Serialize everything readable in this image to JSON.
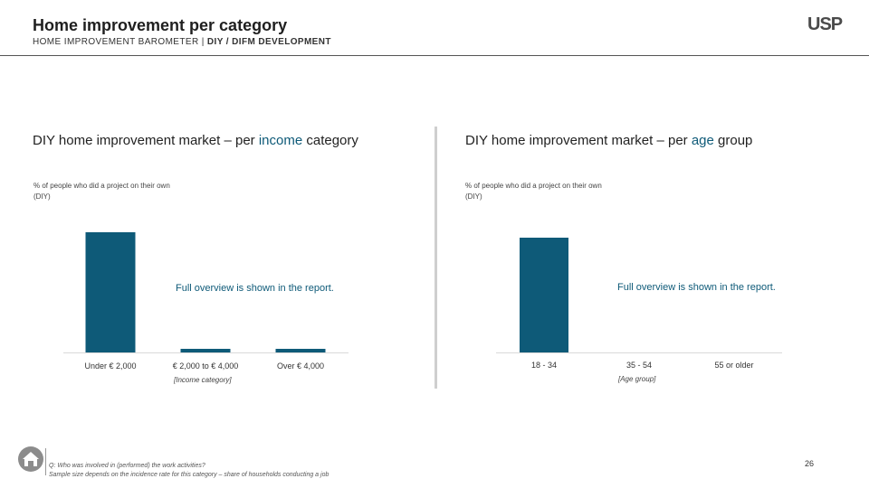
{
  "header": {
    "title": "Home improvement per category",
    "subtitle_prefix": "HOME IMPROVEMENT BAROMETER | ",
    "subtitle_bold": "DIY / DIFM DEVELOPMENT",
    "logo_main": "USP",
    "page_number": "26"
  },
  "panels": [
    {
      "title_before": "DIY home improvement market – per ",
      "title_highlight": "income",
      "title_after": " category",
      "note": "% of people who did a project on their own (DIY)",
      "overlay": "Full overview is shown in the report.",
      "axis_title": "[Income category]"
    },
    {
      "title_before": "DIY home improvement market – per ",
      "title_highlight": "age",
      "title_after": " group",
      "note": "% of people who did a project on their own (DIY)",
      "overlay": "Full overview is shown in the report.",
      "axis_title": "[Age group]"
    }
  ],
  "footer": {
    "line1": "Q: Who was involved in (performed) the work activities?",
    "line2": "Sample size depends on the incidence rate for this category – share of households conducting a job"
  },
  "colors": {
    "bar": "#0e5a78",
    "accent": "#c0392b"
  },
  "chart_data": [
    {
      "type": "bar",
      "title": "DIY home improvement market – per income category",
      "ylabel": "% of people who did a project on their own (DIY)",
      "xlabel": "[Income category]",
      "categories": [
        "Under € 2,000",
        "€ 2,000 to € 4,000",
        "Over € 4,000"
      ],
      "values": [
        100,
        3,
        3
      ],
      "ylim": [
        0,
        100
      ]
    },
    {
      "type": "bar",
      "title": "DIY home improvement market – per age group",
      "ylabel": "% of people who did a project on their own (DIY)",
      "xlabel": "[Age group]",
      "categories": [
        "18 - 34",
        "35 - 54",
        "55 or older"
      ],
      "values": [
        100,
        0,
        0
      ],
      "ylim": [
        0,
        100
      ]
    }
  ]
}
